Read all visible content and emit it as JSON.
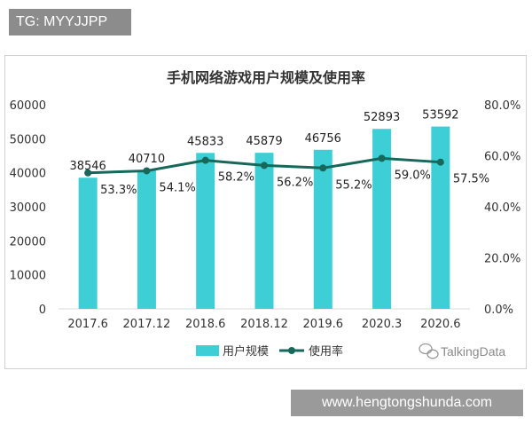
{
  "tg_badge": "TG: MYYJJPP",
  "url_badge": "www.hengtongshunda.com",
  "watermark": "TalkingData",
  "chart_data": {
    "type": "bar",
    "title": "手机网络游戏用户规模及使用率",
    "categories": [
      "2017.6",
      "2017.12",
      "2018.6",
      "2018.12",
      "2019.6",
      "2020.3",
      "2020.6"
    ],
    "series": [
      {
        "name": "用户规模",
        "type": "bar",
        "axis": "left",
        "color": "#3ecfd6",
        "values": [
          38546,
          40710,
          45833,
          45879,
          46756,
          52893,
          53592
        ],
        "labels": [
          "38546",
          "40710",
          "45833",
          "45879",
          "46756",
          "52893",
          "53592"
        ]
      },
      {
        "name": "使用率",
        "type": "line",
        "axis": "right",
        "color": "#17685a",
        "values": [
          53.3,
          54.1,
          58.2,
          56.2,
          55.2,
          59.0,
          57.5
        ],
        "labels": [
          "53.3%",
          "54.1%",
          "58.2%",
          "56.2%",
          "55.2%",
          "59.0%",
          "57.5%"
        ]
      }
    ],
    "y_left": {
      "ylim": [
        0,
        60000
      ],
      "ticks": [
        "60000",
        "50000",
        "40000",
        "30000",
        "20000",
        "10000",
        "0"
      ],
      "tick_values": [
        60000,
        50000,
        40000,
        30000,
        20000,
        10000,
        0
      ]
    },
    "y_right": {
      "ylim": [
        0,
        80
      ],
      "ticks": [
        "80.0%",
        "60.0%",
        "40.0%",
        "20.0%",
        "0.0%"
      ],
      "tick_values": [
        80,
        60,
        40,
        20,
        0
      ]
    },
    "grid": false,
    "legend": "bottom"
  }
}
